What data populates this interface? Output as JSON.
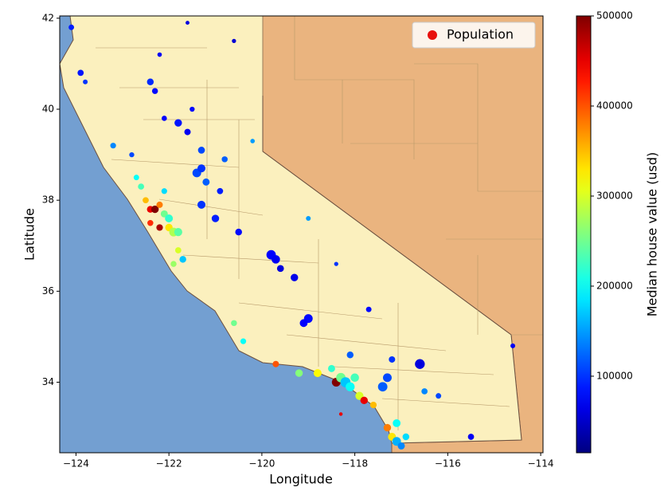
{
  "chart_data": {
    "type": "scatter",
    "xlabel": "Longitude",
    "ylabel": "Latitude",
    "xlim": [
      -124.35,
      -113.95
    ],
    "ylim": [
      32.45,
      42.05
    ],
    "xticks": [
      {
        "value": -124,
        "label": "−124"
      },
      {
        "value": -122,
        "label": "−122"
      },
      {
        "value": -120,
        "label": "−120"
      },
      {
        "value": -118,
        "label": "−118"
      },
      {
        "value": -116,
        "label": "−116"
      },
      {
        "value": -114,
        "label": "−114"
      }
    ],
    "yticks": [
      34,
      36,
      38,
      40,
      42
    ],
    "legend": "upper right",
    "colorbar_label": "Median house value (usd)",
    "clim": [
      15000,
      500000
    ],
    "cticks": [
      100000,
      200000,
      300000,
      400000,
      500000
    ],
    "colormap": "jet",
    "series": [
      {
        "name": "Population",
        "color": "#e8110e",
        "x": [
          -124.1,
          -123.9,
          -123.8,
          -122.4,
          -122.3,
          -122.2,
          -121.6,
          -120.6,
          -123.2,
          -122.1,
          -121.8,
          -121.6,
          -121.3,
          -120.2,
          -121.4,
          -121.3,
          -121.2,
          -120.9,
          -122.5,
          -122.4,
          -122.3,
          -122.2,
          -122.1,
          -122.0,
          -122.0,
          -121.9,
          -121.8,
          -122.4,
          -122.2,
          -122.1,
          -122.6,
          -122.7,
          -121.9,
          -121.7,
          -121.8,
          -121.3,
          -121.0,
          -120.5,
          -119.8,
          -119.7,
          -119.3,
          -119.6,
          -119.0,
          -119.1,
          -120.6,
          -120.4,
          -119.7,
          -119.2,
          -118.8,
          -118.4,
          -118.3,
          -118.2,
          -118.1,
          -118.0,
          -117.9,
          -117.8,
          -118.5,
          -118.1,
          -117.3,
          -117.4,
          -117.2,
          -116.5,
          -116.2,
          -117.6,
          -117.2,
          -117.1,
          -117.0,
          -117.3,
          -117.1,
          -116.9,
          -116.6,
          -115.5,
          -114.6,
          -118.4,
          -117.7,
          -119.0,
          -118.3,
          -121.5,
          -120.8,
          -122.8
        ],
        "y": [
          41.8,
          40.8,
          40.6,
          40.6,
          40.4,
          41.2,
          41.9,
          41.5,
          39.2,
          39.8,
          39.7,
          39.5,
          39.1,
          39.3,
          38.6,
          38.7,
          38.4,
          38.2,
          38.0,
          37.8,
          37.8,
          37.9,
          37.7,
          37.6,
          37.4,
          37.3,
          37.3,
          37.5,
          37.4,
          38.2,
          38.3,
          38.5,
          36.6,
          36.7,
          36.9,
          37.9,
          37.6,
          37.3,
          36.8,
          36.7,
          36.3,
          36.5,
          35.4,
          35.3,
          35.3,
          34.9,
          34.4,
          34.2,
          34.2,
          34.0,
          34.1,
          34.0,
          33.9,
          34.1,
          33.7,
          33.6,
          34.3,
          34.6,
          34.1,
          33.9,
          34.5,
          33.8,
          33.7,
          33.5,
          32.8,
          32.7,
          32.6,
          33.0,
          33.1,
          32.8,
          34.4,
          32.8,
          34.8,
          36.6,
          35.6,
          37.6,
          33.3,
          40.0,
          38.9,
          39.0
        ],
        "sizes": [
          1200,
          1500,
          900,
          1800,
          1400,
          800,
          600,
          700,
          1300,
          1100,
          2200,
          1600,
          1900,
          800,
          3000,
          2500,
          2000,
          1500,
          1500,
          1800,
          2200,
          1600,
          2000,
          2500,
          2200,
          3000,
          2600,
          1400,
          1700,
          1300,
          1500,
          1200,
          1400,
          1800,
          1500,
          2500,
          2200,
          1800,
          3500,
          2800,
          2200,
          1900,
          3000,
          2400,
          1400,
          1300,
          1600,
          2200,
          2500,
          3000,
          3500,
          4000,
          3200,
          2800,
          2600,
          2200,
          2000,
          1800,
          3000,
          3500,
          1600,
          1500,
          1200,
          1700,
          2500,
          3000,
          2000,
          2200,
          2400,
          1800,
          3800,
          1500,
          900,
          700,
          1200,
          900,
          500,
          1000,
          1400,
          1000
        ],
        "colors": [
          90000,
          85000,
          100000,
          95000,
          80000,
          70000,
          60000,
          55000,
          140000,
          75000,
          85000,
          70000,
          110000,
          150000,
          110000,
          100000,
          120000,
          90000,
          350000,
          450000,
          500000,
          380000,
          250000,
          220000,
          330000,
          280000,
          240000,
          420000,
          480000,
          180000,
          230000,
          200000,
          270000,
          170000,
          300000,
          100000,
          90000,
          80000,
          75000,
          70000,
          65000,
          60000,
          80000,
          75000,
          250000,
          200000,
          400000,
          260000,
          320000,
          500000,
          250000,
          170000,
          200000,
          230000,
          300000,
          450000,
          220000,
          120000,
          110000,
          120000,
          100000,
          140000,
          110000,
          350000,
          330000,
          160000,
          140000,
          380000,
          200000,
          180000,
          60000,
          70000,
          70000,
          100000,
          80000,
          150000,
          450000,
          80000,
          120000,
          110000
        ]
      }
    ]
  }
}
